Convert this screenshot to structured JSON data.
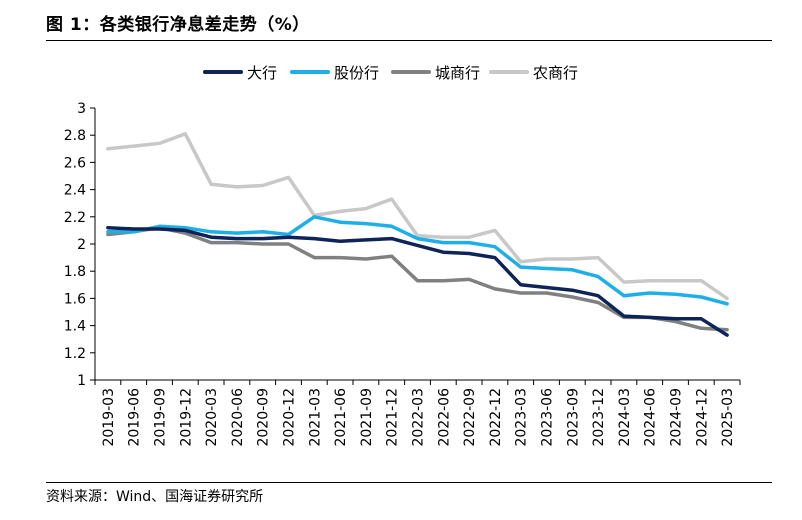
{
  "figure": {
    "title": "图 1：各类银行净息差走势（%）",
    "source": "资料来源：Wind、国海证券研究所"
  },
  "chart_data": {
    "type": "line",
    "title": "各类银行净息差走势（%）",
    "xlabel": "",
    "ylabel": "",
    "ylim": [
      1,
      3
    ],
    "yticks": [
      "1",
      "1.2",
      "1.4",
      "1.6",
      "1.8",
      "2",
      "2.2",
      "2.4",
      "2.6",
      "2.8",
      "3"
    ],
    "grid": false,
    "legend_position": "top",
    "categories": [
      "2019-03",
      "2019-06",
      "2019-09",
      "2019-12",
      "2020-03",
      "2020-06",
      "2020-09",
      "2020-12",
      "2021-03",
      "2021-06",
      "2021-09",
      "2021-12",
      "2022-03",
      "2022-06",
      "2022-09",
      "2022-12",
      "2023-03",
      "2023-06",
      "2023-09",
      "2023-12",
      "2024-03",
      "2024-06",
      "2024-09",
      "2024-12",
      "2025-03"
    ],
    "series": [
      {
        "name": "大行",
        "color": "#0e2357",
        "values": [
          2.12,
          2.11,
          2.11,
          2.1,
          2.05,
          2.04,
          2.04,
          2.05,
          2.04,
          2.02,
          2.03,
          2.04,
          1.99,
          1.94,
          1.93,
          1.9,
          1.7,
          1.68,
          1.66,
          1.62,
          1.47,
          1.46,
          1.45,
          1.45,
          1.33
        ]
      },
      {
        "name": "股份行",
        "color": "#1eaee8",
        "values": [
          2.09,
          2.09,
          2.13,
          2.12,
          2.09,
          2.08,
          2.09,
          2.07,
          2.2,
          2.16,
          2.15,
          2.13,
          2.04,
          2.01,
          2.01,
          1.98,
          1.83,
          1.82,
          1.81,
          1.76,
          1.62,
          1.64,
          1.63,
          1.61,
          1.56
        ]
      },
      {
        "name": "城商行",
        "color": "#808080",
        "values": [
          2.07,
          2.09,
          2.12,
          2.08,
          2.01,
          2.01,
          2.0,
          2.0,
          1.9,
          1.9,
          1.89,
          1.91,
          1.73,
          1.73,
          1.74,
          1.67,
          1.64,
          1.64,
          1.61,
          1.57,
          1.46,
          1.46,
          1.43,
          1.38,
          1.37
        ]
      },
      {
        "name": "农商行",
        "color": "#c8c8c8",
        "values": [
          2.7,
          2.72,
          2.74,
          2.81,
          2.44,
          2.42,
          2.43,
          2.49,
          2.21,
          2.24,
          2.26,
          2.33,
          2.06,
          2.05,
          2.05,
          2.1,
          1.87,
          1.89,
          1.89,
          1.9,
          1.72,
          1.73,
          1.73,
          1.73,
          1.6
        ]
      }
    ]
  }
}
